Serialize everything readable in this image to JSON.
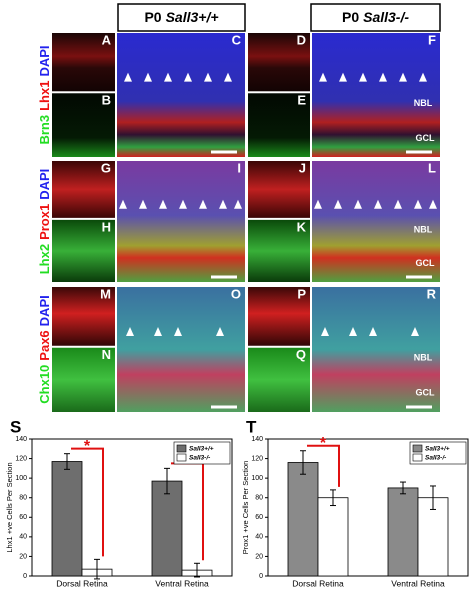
{
  "figure": {
    "headers": [
      {
        "prefix": "P0",
        "genotype": "Sall3+/+"
      },
      {
        "prefix": "P0",
        "genotype": "Sall3-/-"
      }
    ],
    "rows": [
      {
        "markers": [
          {
            "text": "Brn3",
            "color": "#22dd22"
          },
          {
            "text": "Lhx1",
            "color": "#ee1111"
          },
          {
            "text": "DAPI",
            "color": "#2222ee"
          }
        ],
        "panels": [
          "A",
          "B",
          "C",
          "D",
          "E",
          "F"
        ]
      },
      {
        "markers": [
          {
            "text": "Lhx2",
            "color": "#22dd22"
          },
          {
            "text": "Prox1",
            "color": "#ee1111"
          },
          {
            "text": "DAPI",
            "color": "#2222ee"
          }
        ],
        "panels": [
          "G",
          "H",
          "I",
          "J",
          "K",
          "L"
        ]
      },
      {
        "markers": [
          {
            "text": "Chx10",
            "color": "#22dd22"
          },
          {
            "text": "Pax6",
            "color": "#ee1111"
          },
          {
            "text": "DAPI",
            "color": "#2222ee"
          }
        ],
        "panels": [
          "M",
          "N",
          "O",
          "P",
          "Q",
          "R"
        ]
      }
    ],
    "layer_labels": [
      "NBL",
      "GCL"
    ]
  },
  "chart_data": [
    {
      "type": "bar",
      "panel_label": "S",
      "y_label": "Lhx1 +ve Cells Per Section",
      "categories": [
        "Dorsal Retina",
        "Ventral Retina"
      ],
      "series": [
        {
          "name": "Sall3+/+",
          "color": "#6e6e6e",
          "values": [
            117,
            97
          ],
          "errors": [
            8,
            13
          ]
        },
        {
          "name": "Sall3-/-",
          "color": "#ffffff",
          "values": [
            7,
            6
          ],
          "errors": [
            10,
            7
          ]
        }
      ],
      "significance": [
        "*",
        "*"
      ],
      "ylim": [
        0,
        140
      ],
      "yticks": [
        0,
        20,
        40,
        60,
        80,
        100,
        120,
        140
      ]
    },
    {
      "type": "bar",
      "panel_label": "T",
      "y_label": "Prox1 +ve Cells Per Section",
      "categories": [
        "Dorsal Retina",
        "Ventral Retina"
      ],
      "series": [
        {
          "name": "Sall3+/+",
          "color": "#8a8a8a",
          "values": [
            116,
            90
          ],
          "errors": [
            12,
            6
          ]
        },
        {
          "name": "Sall3-/-",
          "color": "#ffffff",
          "values": [
            80,
            80
          ],
          "errors": [
            8,
            12
          ]
        }
      ],
      "significance": [
        "*"
      ],
      "ylim": [
        0,
        140
      ],
      "yticks": [
        0,
        20,
        40,
        60,
        80,
        100,
        120,
        140
      ]
    }
  ]
}
